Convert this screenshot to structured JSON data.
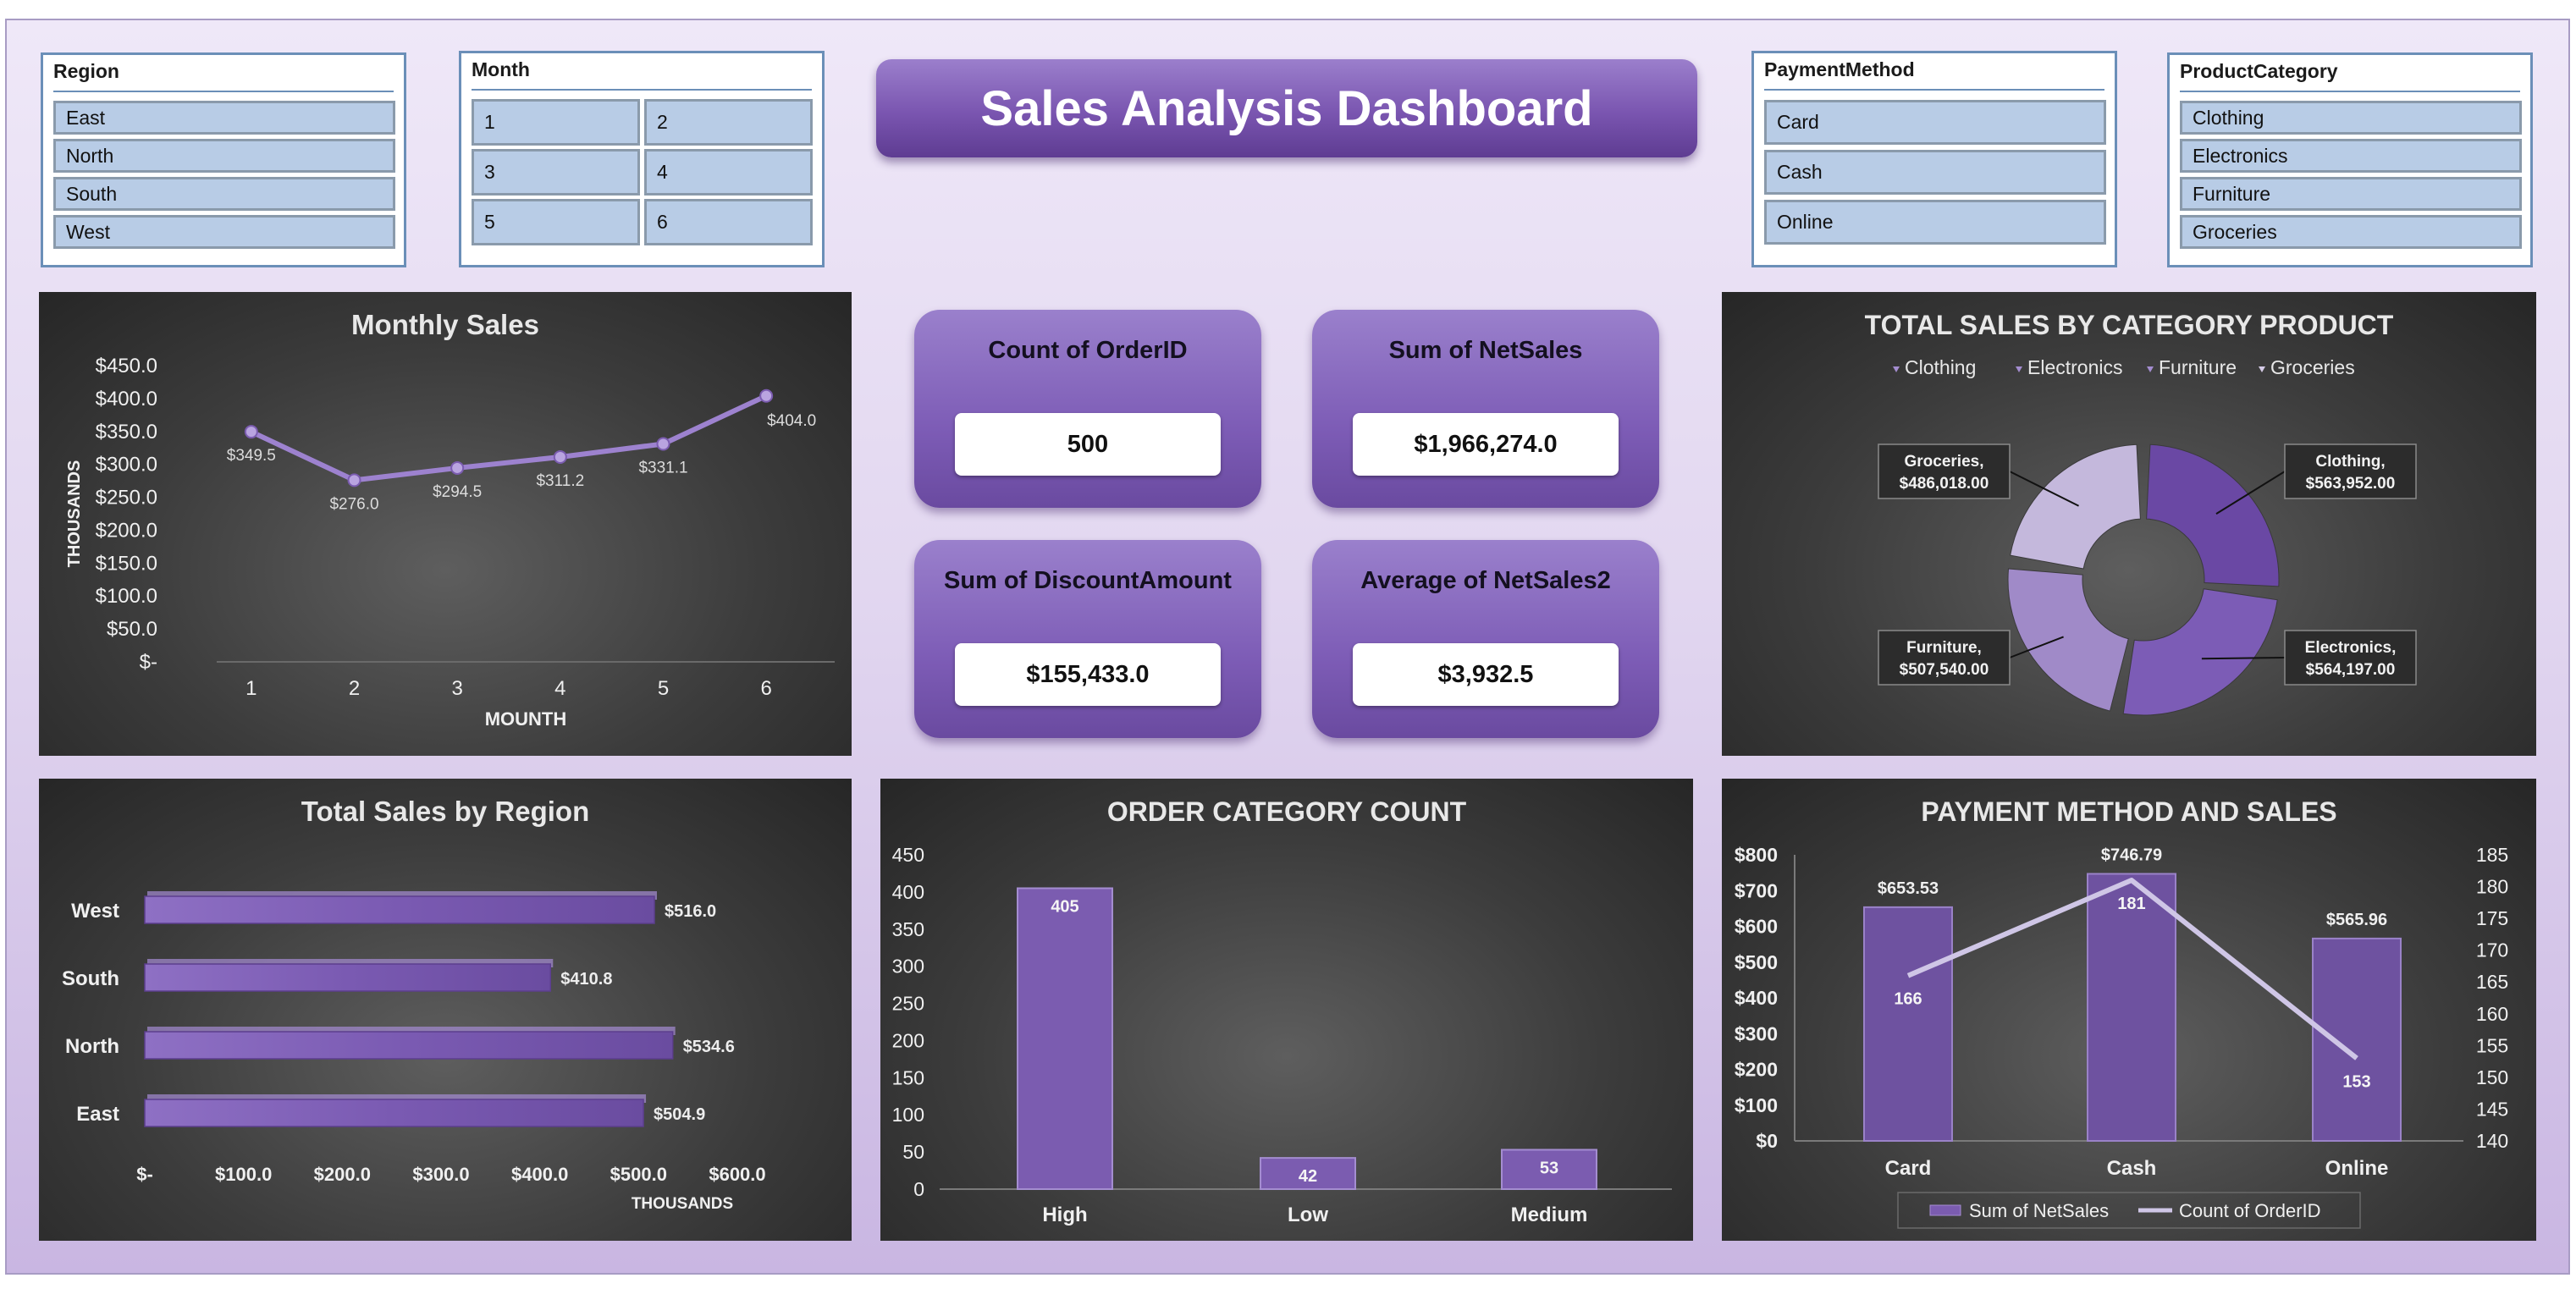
{
  "dashboard_title": "Sales Analysis Dashboard",
  "slicers": {
    "region": {
      "title": "Region",
      "items": [
        "East",
        "North",
        "South",
        "West"
      ]
    },
    "month": {
      "title": "Month",
      "items": [
        "1",
        "2",
        "3",
        "4",
        "5",
        "6"
      ]
    },
    "payment": {
      "title": "PaymentMethod",
      "items": [
        "Card",
        "Cash",
        "Online"
      ]
    },
    "category": {
      "title": "ProductCategory",
      "items": [
        "Clothing",
        "Electronics",
        "Furniture",
        "Groceries"
      ]
    }
  },
  "kpis": [
    {
      "label": "Count of OrderID",
      "value": "500"
    },
    {
      "label": "Sum of NetSales",
      "value": "$1,966,274.0"
    },
    {
      "label": "Sum of DiscountAmount",
      "value": "$155,433.0"
    },
    {
      "label": "Average of NetSales2",
      "value": "$3,932.5"
    }
  ],
  "colors": {
    "purple": "#7b5cb0",
    "purple_light": "#a48dd0",
    "panel_dark": "#333333",
    "line": "#cfc6e6",
    "slicer_item": "#b8cce6"
  },
  "chart_data": [
    {
      "id": "monthly",
      "type": "line",
      "title": "Monthly Sales",
      "xlabel": "MOUNTH",
      "ylabel": "THOUSANDS",
      "x": [
        "1",
        "2",
        "3",
        "4",
        "5",
        "6"
      ],
      "values": [
        349.5,
        276.0,
        294.5,
        311.2,
        331.1,
        404.0
      ],
      "data_labels": [
        "$349.5",
        "$276.0",
        "$294.5",
        "$311.2",
        "$331.1",
        "$404.0"
      ],
      "ylim": [
        0,
        450
      ],
      "yticks": [
        "$-",
        "$50.0",
        "$100.0",
        "$150.0",
        "$200.0",
        "$250.0",
        "$300.0",
        "$350.0",
        "$400.0",
        "$450.0"
      ]
    },
    {
      "id": "category",
      "type": "pie",
      "title": "TOTAL SALES BY CATEGORY PRODUCT",
      "legend": "top",
      "categories": [
        "Clothing",
        "Electronics",
        "Furniture",
        "Groceries"
      ],
      "values": [
        563952,
        564197,
        507540,
        486018
      ],
      "data_labels": [
        [
          "Clothing,",
          "$563,952.00"
        ],
        [
          "Electronics,",
          "$564,197.00"
        ],
        [
          "Furniture,",
          "$507,540.00"
        ],
        [
          "Groceries,",
          "$486,018.00"
        ]
      ],
      "colors": [
        "#6a48a4",
        "#7c5cb6",
        "#a08ac8",
        "#c4b8dc"
      ]
    },
    {
      "id": "region",
      "type": "bar",
      "orientation": "horizontal",
      "title": "Total Sales by Region",
      "xlabel": "THOUSANDS",
      "categories": [
        "East",
        "North",
        "South",
        "West"
      ],
      "values": [
        504.9,
        534.6,
        410.8,
        516.0
      ],
      "data_labels": [
        "$504.9",
        "$534.6",
        "$410.8",
        "$516.0"
      ],
      "xlim": [
        0,
        600
      ],
      "xticks": [
        "$-",
        "$100.0",
        "$200.0",
        "$300.0",
        "$400.0",
        "$500.0",
        "$600.0"
      ]
    },
    {
      "id": "order",
      "type": "bar",
      "title": "ORDER CATEGORY COUNT",
      "categories": [
        "High",
        "Low",
        "Medium"
      ],
      "values": [
        405,
        42,
        53
      ],
      "ylim": [
        0,
        450
      ],
      "yticks": [
        "0",
        "50",
        "100",
        "150",
        "200",
        "250",
        "300",
        "350",
        "400",
        "450"
      ]
    },
    {
      "id": "payment",
      "type": "bar",
      "title": "PAYMENT METHOD AND SALES",
      "legend": "bottom",
      "categories": [
        "Card",
        "Cash",
        "Online"
      ],
      "series": [
        {
          "name": "Sum of NetSales",
          "type": "bar",
          "axis": "left",
          "values": [
            653.53,
            746.79,
            565.96
          ],
          "labels": [
            "$653.53",
            "$746.79",
            "$565.96"
          ]
        },
        {
          "name": "Count of OrderID",
          "type": "line",
          "axis": "right",
          "values": [
            166,
            181,
            153
          ],
          "labels": [
            "166",
            "181",
            "153"
          ]
        }
      ],
      "ylim": [
        0,
        800
      ],
      "yticks": [
        "$0",
        "$100",
        "$200",
        "$300",
        "$400",
        "$500",
        "$600",
        "$700",
        "$800"
      ],
      "y2lim": [
        140,
        185
      ],
      "y2ticks": [
        "140",
        "145",
        "150",
        "155",
        "160",
        "165",
        "170",
        "175",
        "180",
        "185"
      ]
    }
  ]
}
